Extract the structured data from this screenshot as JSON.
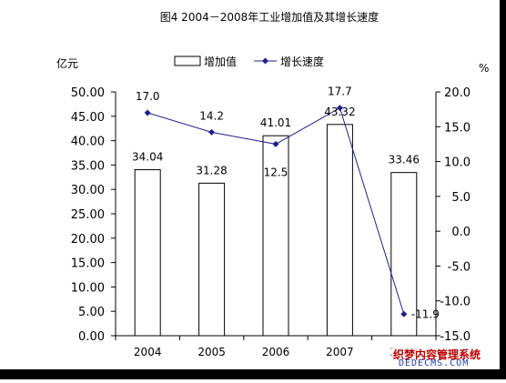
{
  "chart_data": {
    "type": "bar",
    "title": "图4   2004－2008年工业增加值及其增长速度",
    "categories": [
      "2004",
      "2005",
      "2006",
      "2007",
      "2008"
    ],
    "series": [
      {
        "name": "增加值",
        "type": "bar",
        "axis": "left",
        "values": [
          34.04,
          31.28,
          41.01,
          43.32,
          33.46
        ],
        "labels": [
          "34.04",
          "31.28",
          "41.01",
          "43.32",
          "33.46"
        ]
      },
      {
        "name": "增长速度",
        "type": "line",
        "axis": "right",
        "values": [
          17.0,
          14.2,
          12.5,
          17.7,
          -11.9
        ],
        "labels": [
          "17.0",
          "14.2",
          "12.5",
          "17.7",
          "-11.9"
        ]
      }
    ],
    "y_left": {
      "label": "亿元",
      "range": [
        0,
        50
      ],
      "ticks": [
        "0.00",
        "5.00",
        "10.00",
        "15.00",
        "20.00",
        "25.00",
        "30.00",
        "35.00",
        "40.00",
        "45.00",
        "50.00"
      ],
      "tick_values": [
        0,
        5,
        10,
        15,
        20,
        25,
        30,
        35,
        40,
        45,
        50
      ]
    },
    "y_right": {
      "label": "%",
      "range": [
        -15,
        20
      ],
      "ticks": [
        "-15.0",
        "-10.0",
        "-5.0",
        "0.0",
        "5.0",
        "10.0",
        "15.0",
        "20.0"
      ],
      "tick_values": [
        -15,
        -10,
        -5,
        0,
        5,
        10,
        15,
        20
      ]
    },
    "legend_position": "top",
    "grid": false,
    "colors": {
      "bar_fill": "#ffffff",
      "bar_stroke": "#000000",
      "line": "#1f1f8f",
      "marker": "#1f1f8f"
    }
  },
  "watermark": {
    "line1": "织梦内容管理系统",
    "line2": "DEDECMS.COM"
  }
}
